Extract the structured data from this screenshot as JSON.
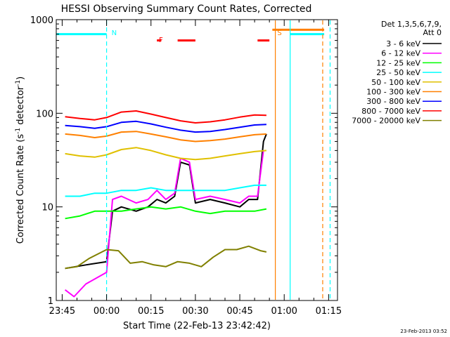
{
  "chart_data": {
    "type": "line",
    "title": "HESSI Observing Summary Count Rates, Corrected",
    "xlabel": "Start Time (22-Feb-13 23:42:42)",
    "ylabel_main": "Corrected Count Rate (s",
    "ylabel_sup1": "-1",
    "ylabel_mid": " detector",
    "ylabel_sup2": "-1",
    "ylabel_end": ")",
    "yscale": "log",
    "ylim": [
      1,
      1000
    ],
    "xlim_minutes": [
      -17,
      78
    ],
    "y_ticks": [
      {
        "value": 1,
        "label": "1"
      },
      {
        "value": 10,
        "label": "10"
      },
      {
        "value": 100,
        "label": "100"
      },
      {
        "value": 1000,
        "label": "1000"
      }
    ],
    "x_ticks": [
      {
        "value": -15,
        "label": "23:45"
      },
      {
        "value": 0,
        "label": "00:00"
      },
      {
        "value": 15,
        "label": "00:15"
      },
      {
        "value": 30,
        "label": "00:30"
      },
      {
        "value": 45,
        "label": "00:45"
      },
      {
        "value": 60,
        "label": "01:00"
      },
      {
        "value": 75,
        "label": "01:15"
      }
    ],
    "legend_header": [
      "Det 1,3,5,6,7,9,",
      "Att 0"
    ],
    "series": [
      {
        "name": "3 - 6 keV",
        "color": "#000000",
        "values": [
          [
            -14,
            2.2
          ],
          [
            -7,
            2.4
          ],
          [
            0,
            2.6
          ],
          [
            2,
            9
          ],
          [
            5,
            10
          ],
          [
            10,
            9
          ],
          [
            14,
            10
          ],
          [
            17,
            12
          ],
          [
            20,
            11
          ],
          [
            23,
            13
          ],
          [
            25,
            30
          ],
          [
            28,
            28
          ],
          [
            30,
            11
          ],
          [
            35,
            12
          ],
          [
            40,
            11
          ],
          [
            45,
            10
          ],
          [
            48,
            12
          ],
          [
            51,
            12
          ],
          [
            53,
            50
          ],
          [
            54,
            60
          ]
        ]
      },
      {
        "name": "6 - 12 keV",
        "color": "#ff00ff",
        "values": [
          [
            -14,
            1.3
          ],
          [
            -11,
            1.1
          ],
          [
            -7,
            1.5
          ],
          [
            0,
            2
          ],
          [
            2,
            12
          ],
          [
            5,
            13
          ],
          [
            10,
            11
          ],
          [
            14,
            12
          ],
          [
            17,
            15
          ],
          [
            20,
            12
          ],
          [
            23,
            14
          ],
          [
            25,
            33
          ],
          [
            28,
            30
          ],
          [
            30,
            12
          ],
          [
            35,
            13
          ],
          [
            40,
            12
          ],
          [
            45,
            11
          ],
          [
            48,
            13
          ],
          [
            51,
            13
          ],
          [
            53,
            40
          ]
        ]
      },
      {
        "name": "12 - 25 keV",
        "color": "#00ff00",
        "values": [
          [
            -14,
            7.5
          ],
          [
            -9,
            8
          ],
          [
            -4,
            9
          ],
          [
            0,
            9
          ],
          [
            5,
            9
          ],
          [
            10,
            9.5
          ],
          [
            15,
            10
          ],
          [
            20,
            9.5
          ],
          [
            25,
            10
          ],
          [
            30,
            9
          ],
          [
            35,
            8.5
          ],
          [
            40,
            9
          ],
          [
            45,
            9
          ],
          [
            50,
            9
          ],
          [
            54,
            9.5
          ]
        ]
      },
      {
        "name": "25 - 50 keV",
        "color": "#00ffff",
        "values": [
          [
            -14,
            13
          ],
          [
            -9,
            13
          ],
          [
            -4,
            14
          ],
          [
            0,
            14
          ],
          [
            5,
            15
          ],
          [
            10,
            15
          ],
          [
            15,
            16
          ],
          [
            20,
            15
          ],
          [
            25,
            15
          ],
          [
            30,
            15
          ],
          [
            35,
            15
          ],
          [
            40,
            15
          ],
          [
            45,
            16
          ],
          [
            50,
            17
          ],
          [
            54,
            17
          ]
        ]
      },
      {
        "name": "50 - 100 keV",
        "color": "#e0c000",
        "values": [
          [
            -14,
            37
          ],
          [
            -9,
            35
          ],
          [
            -4,
            34
          ],
          [
            0,
            36
          ],
          [
            5,
            41
          ],
          [
            10,
            43
          ],
          [
            15,
            40
          ],
          [
            20,
            36
          ],
          [
            25,
            33
          ],
          [
            30,
            32
          ],
          [
            35,
            33
          ],
          [
            40,
            35
          ],
          [
            45,
            37
          ],
          [
            50,
            39
          ],
          [
            54,
            40
          ]
        ]
      },
      {
        "name": "100 - 300 keV",
        "color": "#ff8000",
        "values": [
          [
            -14,
            60
          ],
          [
            -9,
            58
          ],
          [
            -4,
            55
          ],
          [
            0,
            57
          ],
          [
            5,
            63
          ],
          [
            10,
            64
          ],
          [
            15,
            60
          ],
          [
            20,
            56
          ],
          [
            25,
            52
          ],
          [
            30,
            50
          ],
          [
            35,
            51
          ],
          [
            40,
            53
          ],
          [
            45,
            56
          ],
          [
            50,
            59
          ],
          [
            54,
            60
          ]
        ]
      },
      {
        "name": "300 - 800 keV",
        "color": "#0000ff",
        "values": [
          [
            -14,
            74
          ],
          [
            -9,
            72
          ],
          [
            -4,
            69
          ],
          [
            0,
            72
          ],
          [
            5,
            80
          ],
          [
            10,
            82
          ],
          [
            15,
            77
          ],
          [
            20,
            71
          ],
          [
            25,
            66
          ],
          [
            30,
            63
          ],
          [
            35,
            64
          ],
          [
            40,
            67
          ],
          [
            45,
            71
          ],
          [
            50,
            75
          ],
          [
            54,
            76
          ]
        ]
      },
      {
        "name": "800 - 7000 keV",
        "color": "#ff0000",
        "values": [
          [
            -14,
            92
          ],
          [
            -9,
            88
          ],
          [
            -4,
            85
          ],
          [
            0,
            90
          ],
          [
            5,
            103
          ],
          [
            10,
            106
          ],
          [
            15,
            98
          ],
          [
            20,
            90
          ],
          [
            25,
            83
          ],
          [
            30,
            79
          ],
          [
            35,
            81
          ],
          [
            40,
            85
          ],
          [
            45,
            91
          ],
          [
            50,
            96
          ],
          [
            54,
            95
          ]
        ]
      },
      {
        "name": "7000 - 20000 keV",
        "color": "#808000",
        "values": [
          [
            -14,
            2.2
          ],
          [
            -10,
            2.3
          ],
          [
            -6,
            2.8
          ],
          [
            0,
            3.5
          ],
          [
            4,
            3.4
          ],
          [
            8,
            2.5
          ],
          [
            12,
            2.6
          ],
          [
            16,
            2.4
          ],
          [
            20,
            2.3
          ],
          [
            24,
            2.6
          ],
          [
            28,
            2.5
          ],
          [
            32,
            2.3
          ],
          [
            36,
            2.9
          ],
          [
            40,
            3.5
          ],
          [
            44,
            3.5
          ],
          [
            48,
            3.8
          ],
          [
            52,
            3.4
          ],
          [
            54,
            3.3
          ]
        ]
      }
    ],
    "annotations": [
      {
        "label": "N",
        "color": "#00ffff",
        "x": 0
      },
      {
        "label": "F",
        "color": "#ff0000",
        "x": 16
      },
      {
        "label": "S",
        "color": "#ff8000",
        "x": 56
      }
    ],
    "flag_bars": [
      {
        "color": "#00ffff",
        "y": 700,
        "ranges": [
          [
            -17,
            0
          ],
          [
            62,
            73.5
          ]
        ]
      },
      {
        "color": "#ff8000",
        "y": 780,
        "ranges": [
          [
            56,
            73.5
          ]
        ]
      },
      {
        "color": "#ff0000",
        "y": 600,
        "ranges": [
          [
            17,
            18.5
          ],
          [
            24,
            30
          ],
          [
            51,
            55
          ]
        ]
      }
    ],
    "vlines": [
      {
        "x": 0,
        "color": "#00ffff",
        "style": "dashed"
      },
      {
        "x": 57,
        "color": "#ff8000",
        "style": "solid"
      },
      {
        "x": 62,
        "color": "#00ffff",
        "style": "solid"
      },
      {
        "x": 73,
        "color": "#ff8000",
        "style": "dashed"
      },
      {
        "x": 75.5,
        "color": "#00ffff",
        "style": "dashed"
      }
    ],
    "timestamp": "23-Feb-2013 03:52"
  }
}
